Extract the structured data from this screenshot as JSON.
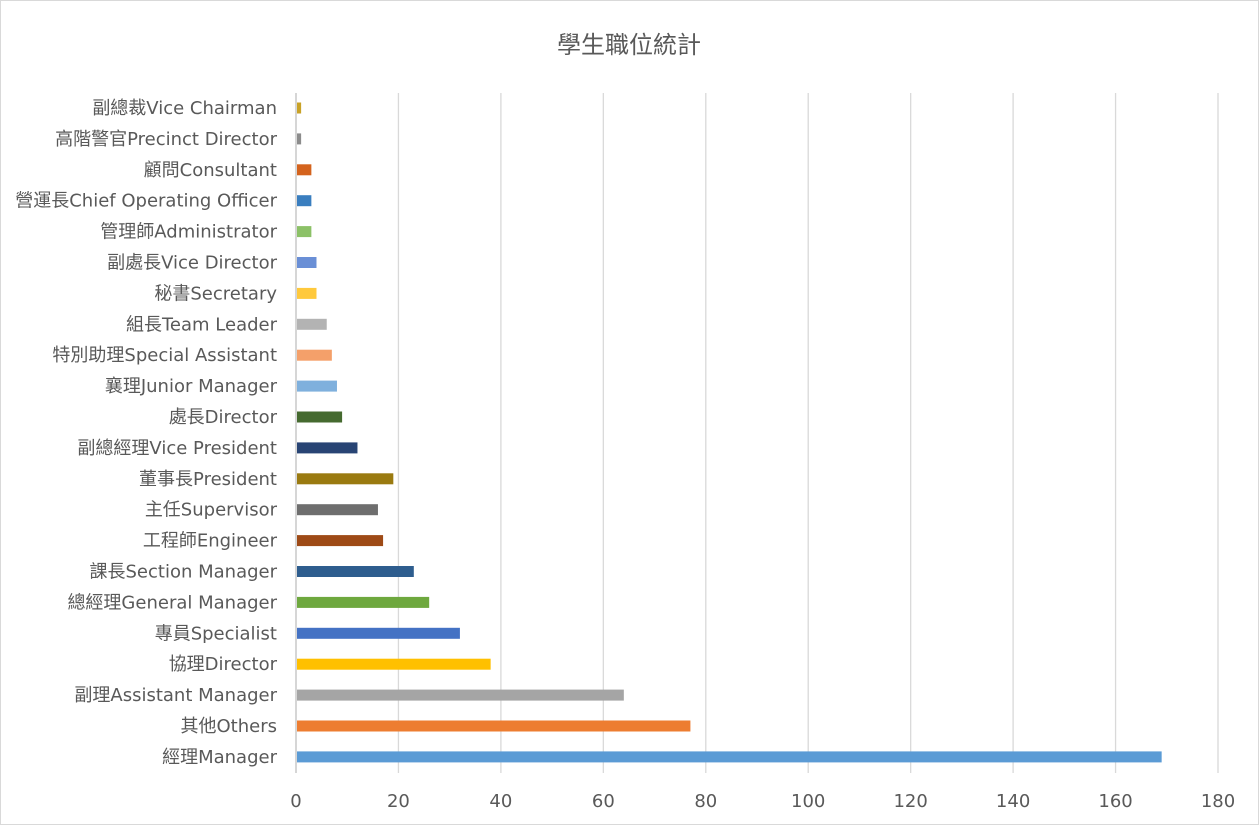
{
  "chart_data": {
    "type": "bar",
    "orientation": "horizontal",
    "title": "學生職位統計",
    "xlabel": "",
    "ylabel": "",
    "xlim": [
      0,
      180
    ],
    "ticks": [
      0,
      20,
      40,
      60,
      80,
      100,
      120,
      140,
      160,
      180
    ],
    "grid": true,
    "legend": "none",
    "categories": [
      "副總裁Vice Chairman",
      "高階警官Precinct Director",
      "顧問Consultant",
      "營運長Chief Operating Officer",
      "管理師Administrator",
      "副處長Vice Director",
      "秘書Secretary",
      "組長Team Leader",
      "特別助理Special Assistant",
      "襄理Junior Manager",
      "處長Director",
      "副總經理Vice President",
      "董事長President",
      "主任Supervisor",
      "工程師Engineer",
      "課長Section Manager",
      "總經理General Manager",
      "專員Specialist",
      "協理Director",
      "副理Assistant Manager",
      "其他Others",
      "經理Manager"
    ],
    "values": [
      1,
      1,
      3,
      3,
      3,
      4,
      4,
      6,
      7,
      8,
      9,
      12,
      19,
      16,
      17,
      23,
      26,
      32,
      38,
      64,
      77,
      169
    ],
    "colors": [
      "#c9a227",
      "#8c8c8c",
      "#d4631d",
      "#3a7ebf",
      "#8cc167",
      "#6a8fd6",
      "#ffc93c",
      "#b3b3b3",
      "#f4a06a",
      "#7fb0dd",
      "#456a2f",
      "#284474",
      "#9a7a10",
      "#6e6e6e",
      "#9e4a16",
      "#2e5d8e",
      "#6ea83e",
      "#4472c4",
      "#ffc000",
      "#a5a5a5",
      "#ed7d31",
      "#5b9bd5"
    ]
  }
}
